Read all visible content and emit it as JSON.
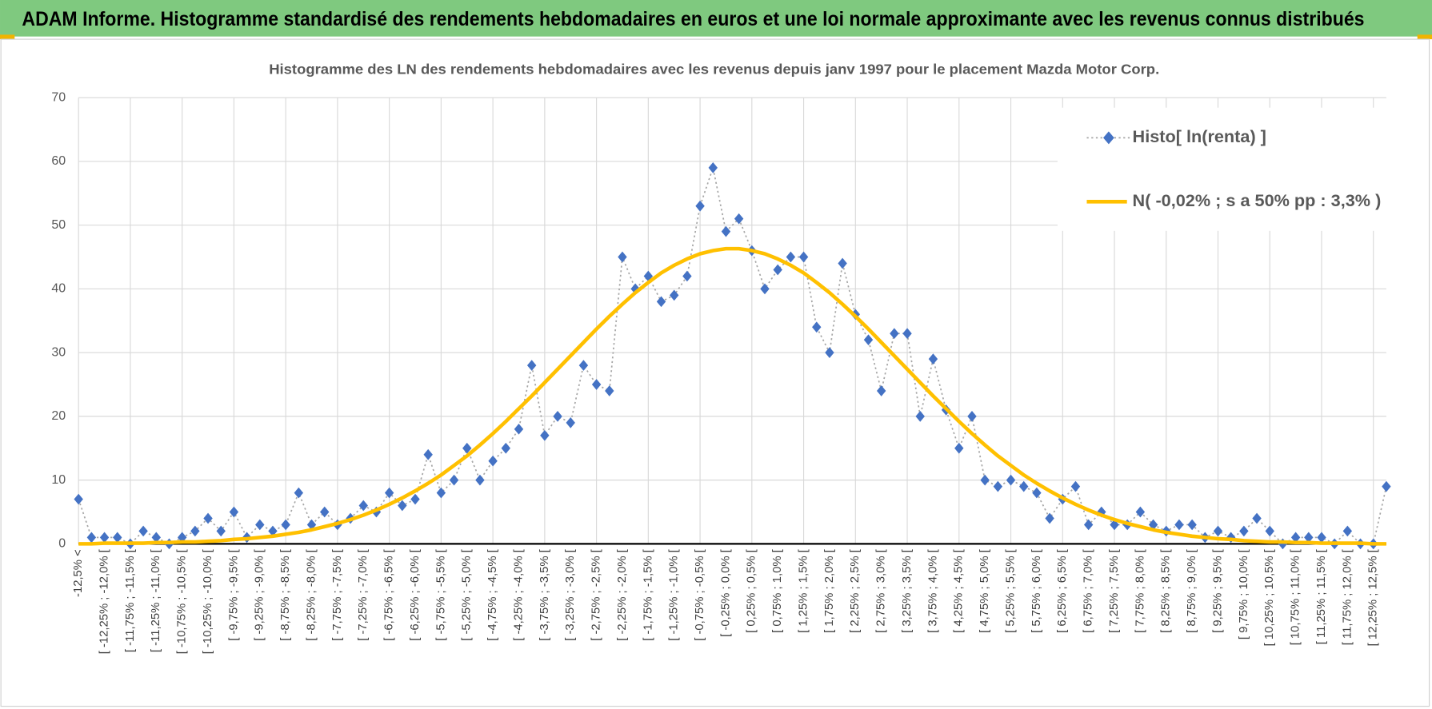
{
  "header": {
    "title": "ADAM Informe. Histogramme standardisé des rendements hebdomadaires en euros et une loi normale approximante avec les revenus connus distribués"
  },
  "chart_data": {
    "type": "line",
    "title": "Histogramme des LN des rendements hebdomadaires avec les revenus depuis janv 1997 pour le placement Mazda Motor Corp.",
    "categories": [
      "-12,5% <",
      null,
      "[ -12,25% ; -12,0% [",
      null,
      "[ -11,75% ; -11,5% [",
      null,
      "[ -11,25% ; -11,0% [",
      null,
      "[ -10,75% ; -10,5% [",
      null,
      "[ -10,25% ; -10,0% [",
      null,
      "[ -9,75% ; -9,5% [",
      null,
      "[ -9,25% ; -9,0% [",
      null,
      "[ -8,75% ; -8,5% [",
      null,
      "[ -8,25% ; -8,0% [",
      null,
      "[ -7,75% ; -7,5% [",
      null,
      "[ -7,25% ; -7,0% [",
      null,
      "[ -6,75% ; -6,5% [",
      null,
      "[ -6,25% ; -6,0% [",
      null,
      "[ -5,75% ; -5,5% [",
      null,
      "[ -5,25% ; -5,0% [",
      null,
      "[ -4,75% ; -4,5% [",
      null,
      "[ -4,25% ; -4,0% [",
      null,
      "[ -3,75% ; -3,5% [",
      null,
      "[ -3,25% ; -3,0% [",
      null,
      "[ -2,75% ; -2,5% [",
      null,
      "[ -2,25% ; -2,0% [",
      null,
      "[ -1,75% ; -1,5% [",
      null,
      "[ -1,25% ; -1,0% [",
      null,
      "[ -0,75% ; -0,5% [",
      null,
      "[ -0,25% ; 0,0% [",
      null,
      "[ 0,25% ; 0,5% [",
      null,
      "[ 0,75% ; 1,0% [",
      null,
      "[ 1,25% ; 1,5% [",
      null,
      "[ 1,75% ; 2,0% [",
      null,
      "[ 2,25% ; 2,5% [",
      null,
      "[ 2,75% ; 3,0% [",
      null,
      "[ 3,25% ; 3,5% [",
      null,
      "[ 3,75% ; 4,0% [",
      null,
      "[ 4,25% ; 4,5% [",
      null,
      "[ 4,75% ; 5,0% [",
      null,
      "[ 5,25% ; 5,5% [",
      null,
      "[ 5,75% ; 6,0% [",
      null,
      "[ 6,25% ; 6,5% [",
      null,
      "[ 6,75% ; 7,0% [",
      null,
      "[ 7,25% ; 7,5% [",
      null,
      "[ 7,75% ; 8,0% [",
      null,
      "[ 8,25% ; 8,5% [",
      null,
      "[ 8,75% ; 9,0% [",
      null,
      "[ 9,25% ; 9,5% [",
      null,
      "[ 9,75% ; 10,0% [",
      null,
      "[ 10,25% ; 10,5% [",
      null,
      "[ 10,75% ; 11,0% [",
      null,
      "[ 11,25% ; 11,5% [",
      null,
      "[ 11,75% ; 12,0% [",
      null,
      "[ 12,25% ; 12,5% [",
      null
    ],
    "series": [
      {
        "name": "Histo[ ln(renta) ]",
        "color": "#4472c4",
        "values": [
          7,
          1,
          1,
          1,
          0,
          2,
          1,
          0,
          1,
          2,
          4,
          2,
          5,
          1,
          3,
          2,
          3,
          8,
          3,
          5,
          3,
          4,
          6,
          5,
          8,
          6,
          7,
          14,
          8,
          10,
          15,
          10,
          13,
          15,
          18,
          28,
          17,
          20,
          19,
          28,
          25,
          24,
          45,
          40,
          42,
          38,
          39,
          42,
          53,
          59,
          49,
          51,
          46,
          40,
          43,
          45,
          45,
          34,
          30,
          44,
          36,
          32,
          24,
          33,
          33,
          20,
          29,
          21,
          15,
          20,
          10,
          9,
          10,
          9,
          8,
          4,
          7,
          9,
          3,
          5,
          3,
          3,
          5,
          3,
          2,
          3,
          3,
          1,
          2,
          1,
          2,
          4,
          2,
          0,
          1,
          1,
          1,
          0,
          2,
          0,
          0,
          9
        ]
      },
      {
        "name": "N( -0,02% ; s a 50% pp : 3,3% )",
        "color": "#ffc000",
        "values": [
          0,
          0.0,
          0.1,
          0.1,
          0.1,
          0.1,
          0.2,
          0.2,
          0.3,
          0.3,
          0.4,
          0.5,
          0.7,
          0.8,
          1.0,
          1.2,
          1.5,
          1.8,
          2.2,
          2.7,
          3.2,
          3.8,
          4.5,
          5.3,
          6.2,
          7.2,
          8.3,
          9.5,
          10.8,
          12.3,
          13.8,
          15.5,
          17.3,
          19.2,
          21.2,
          23.2,
          25.3,
          27.4,
          29.5,
          31.6,
          33.7,
          35.7,
          37.6,
          39.4,
          41.0,
          42.5,
          43.7,
          44.7,
          45.5,
          46.0,
          46.3,
          46.3,
          46.0,
          45.5,
          44.7,
          43.7,
          42.5,
          41.0,
          39.4,
          37.6,
          35.7,
          33.7,
          31.6,
          29.5,
          27.4,
          25.3,
          23.2,
          21.2,
          19.2,
          17.3,
          15.5,
          13.8,
          12.3,
          10.8,
          9.5,
          8.3,
          7.2,
          6.2,
          5.3,
          4.5,
          3.8,
          3.2,
          2.7,
          2.2,
          1.8,
          1.5,
          1.2,
          1.0,
          0.8,
          0.7,
          0.5,
          0.4,
          0.3,
          0.3,
          0.2,
          0.2,
          0.1,
          0.1,
          0.1,
          0.1,
          0.0,
          0
        ]
      }
    ],
    "ylim": [
      0,
      70
    ],
    "yticks": [
      0,
      10,
      20,
      30,
      40,
      50,
      60,
      70
    ],
    "grid": true,
    "legend": "upper right"
  }
}
